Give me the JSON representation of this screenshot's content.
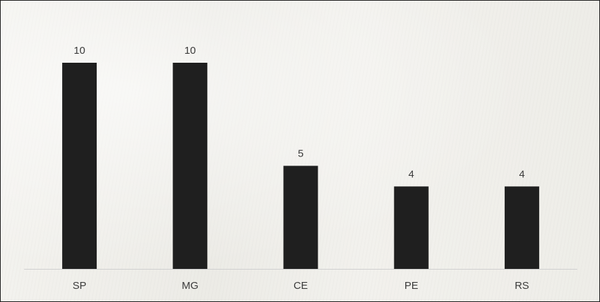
{
  "chart_data": {
    "type": "bar",
    "categories": [
      "SP",
      "MG",
      "CE",
      "PE",
      "RS"
    ],
    "values": [
      10,
      10,
      5,
      4,
      4
    ],
    "data_labels": [
      "10",
      "10",
      "5",
      "4",
      "4"
    ],
    "title": "",
    "xlabel": "",
    "ylabel": "",
    "ylim": [
      0,
      10
    ],
    "grid": false,
    "legend": "none",
    "colors": {
      "bar": "#1f1f1f",
      "axis": "#cfcfcf",
      "text": "#3a3a3a"
    }
  }
}
